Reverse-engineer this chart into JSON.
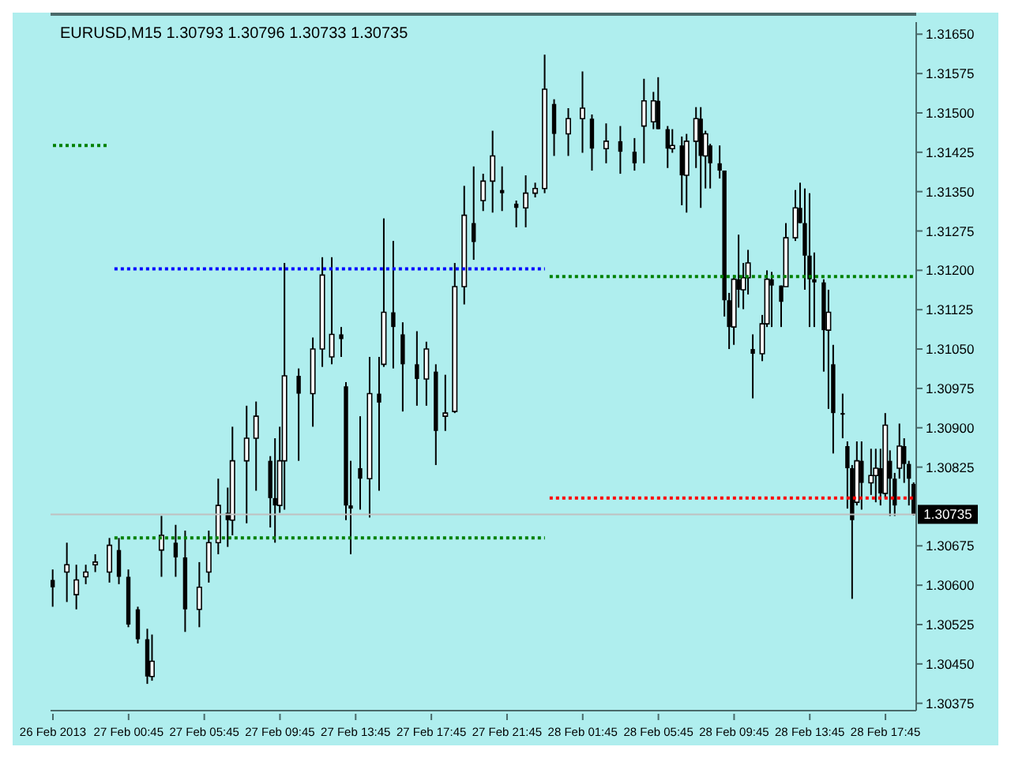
{
  "chart_data": {
    "type": "candlestick",
    "title": "EURUSD,M15  1.30793 1.30796 1.30733 1.30735",
    "color": "#000000",
    "categories": [
      "26 Feb 2013",
      null,
      null,
      null,
      null,
      null,
      null,
      null,
      null,
      null,
      null,
      null,
      null,
      null,
      null,
      null,
      "27 Feb 00:45",
      null,
      null,
      null,
      null,
      null,
      null,
      null,
      null,
      null,
      null,
      null,
      null,
      null,
      null,
      null,
      "27 Feb 05:45",
      null,
      null,
      null,
      null,
      null,
      null,
      null,
      null,
      null,
      null,
      null,
      null,
      null,
      null,
      null,
      "27 Feb 09:45",
      null,
      null,
      null,
      null,
      null,
      null,
      null,
      null,
      null,
      null,
      null,
      null,
      null,
      null,
      null,
      "27 Feb 13:45",
      null,
      null,
      null,
      null,
      null,
      null,
      null,
      null,
      null,
      null,
      null,
      null,
      null,
      null,
      null,
      "27 Feb 17:45",
      null,
      null,
      null,
      null,
      null,
      null,
      null,
      null,
      null,
      null,
      null,
      null,
      null,
      null,
      null,
      "27 Feb 21:45",
      null,
      null,
      null,
      null,
      null,
      null,
      null,
      null,
      null,
      null,
      null,
      null,
      null,
      null,
      null,
      "28 Feb 01:45",
      null,
      null,
      null,
      null,
      null,
      null,
      null,
      null,
      null,
      null,
      null,
      null,
      null,
      null,
      null,
      "28 Feb 05:45",
      null,
      null,
      null,
      null,
      null,
      null,
      null,
      null,
      null,
      null,
      null,
      null,
      null,
      null,
      null,
      "28 Feb 09:45",
      null,
      null,
      null,
      null,
      null,
      null,
      null,
      null,
      null,
      null,
      null,
      null,
      null,
      null,
      null,
      "28 Feb 13:45",
      null,
      null,
      null,
      null,
      null,
      null,
      null,
      null,
      null,
      null,
      null,
      null,
      null,
      null,
      null,
      "28 Feb 17:45",
      null,
      null,
      null,
      null,
      null,
      null
    ],
    "ohlc": [
      [
        1.3061,
        1.3063,
        1.30559,
        1.30596
      ],
      null,
      null,
      [
        1.30625,
        1.30681,
        1.30568,
        1.30639
      ],
      null,
      [
        1.30582,
        1.30639,
        1.30554,
        1.3061
      ],
      null,
      [
        1.30616,
        1.30639,
        1.30602,
        1.30625
      ],
      null,
      [
        1.30639,
        1.30659,
        1.30625,
        1.30644
      ],
      null,
      null,
      [
        1.30625,
        1.3069,
        1.30605,
        1.30676
      ],
      null,
      [
        1.30667,
        1.3069,
        1.30602,
        1.30616
      ],
      null,
      [
        1.30616,
        1.3063,
        1.3052,
        1.30525
      ],
      null,
      [
        1.30554,
        1.30559,
        1.30489,
        1.30497
      ],
      null,
      [
        1.30497,
        1.30517,
        1.30412,
        1.30426
      ],
      [
        1.30426,
        1.30506,
        1.30418,
        1.30455
      ],
      null,
      [
        1.30667,
        1.30732,
        1.30616,
        1.30695
      ],
      null,
      null,
      [
        1.30681,
        1.30715,
        1.30616,
        1.30653
      ],
      null,
      [
        1.30653,
        1.30704,
        1.30511,
        1.30554
      ],
      null,
      null,
      [
        1.30554,
        1.30644,
        1.3052,
        1.30596
      ],
      null,
      [
        1.30625,
        1.30704,
        1.30605,
        1.30681
      ],
      null,
      [
        1.30681,
        1.30803,
        1.30659,
        1.30752
      ],
      null,
      [
        1.30738,
        1.30786,
        1.30673,
        1.30724
      ],
      [
        1.30724,
        1.30902,
        1.30695,
        1.30837
      ],
      null,
      null,
      [
        1.30837,
        1.30942,
        1.30718,
        1.3088
      ],
      null,
      [
        1.3088,
        1.3095,
        1.3078,
        1.30922
      ],
      null,
      null,
      [
        1.30837,
        1.30846,
        1.3071,
        1.30766
      ],
      [
        1.30766,
        1.3088,
        1.30681,
        1.30752
      ],
      [
        1.30752,
        1.30902,
        1.30738,
        1.30837
      ],
      [
        1.30837,
        1.31214,
        1.30744,
        1.30999
      ],
      null,
      null,
      [
        1.30999,
        1.31013,
        1.30837,
        1.30965
      ],
      null,
      null,
      [
        1.30965,
        1.31072,
        1.30902,
        1.3105
      ],
      null,
      [
        1.3105,
        1.31225,
        1.31016,
        1.31191
      ],
      null,
      [
        1.31035,
        1.31225,
        1.31021,
        1.31078
      ],
      null,
      [
        1.31078,
        1.31092,
        1.31035,
        1.31069
      ],
      [
        1.30979,
        1.30987,
        1.30724,
        1.30752
      ],
      [
        1.30752,
        1.30837,
        1.30659,
        1.30746
      ],
      null,
      [
        1.30823,
        1.30922,
        1.30744,
        1.30803
      ],
      null,
      [
        1.30803,
        1.31035,
        1.30729,
        1.30965
      ],
      null,
      [
        1.30965,
        1.31035,
        1.3078,
        1.30948
      ],
      [
        1.31021,
        1.31299,
        1.31016,
        1.3112
      ],
      null,
      [
        1.3112,
        1.31256,
        1.31013,
        1.31092
      ],
      null,
      [
        1.31078,
        1.31101,
        1.30931,
        1.31021
      ],
      null,
      null,
      [
        1.31021,
        1.31084,
        1.30942,
        1.30993
      ],
      null,
      [
        1.30993,
        1.31064,
        1.30942,
        1.3105
      ],
      null,
      [
        1.31007,
        1.31021,
        1.30829,
        1.30894
      ],
      null,
      [
        1.30922,
        1.31001,
        1.30894,
        1.30928
      ],
      null,
      [
        1.30931,
        1.31214,
        1.30928,
        1.31169
      ],
      null,
      [
        1.31169,
        1.31361,
        1.31135,
        1.31305
      ],
      null,
      [
        1.3129,
        1.31398,
        1.3122,
        1.31254
      ],
      null,
      [
        1.31333,
        1.31384,
        1.31313,
        1.3137
      ],
      null,
      [
        1.3137,
        1.31466,
        1.3131,
        1.31418
      ],
      null,
      [
        1.31353,
        1.31398,
        1.31313,
        1.31347
      ],
      null,
      null,
      [
        1.31327,
        1.31333,
        1.31282,
        1.31319
      ],
      null,
      [
        1.31319,
        1.31381,
        1.31282,
        1.31347
      ],
      null,
      [
        1.31347,
        1.31367,
        1.31339,
        1.31356
      ],
      null,
      [
        1.31356,
        1.31611,
        1.31347,
        1.31545
      ],
      null,
      [
        1.31517,
        1.31526,
        1.31418,
        1.3146
      ],
      null,
      null,
      [
        1.3146,
        1.31509,
        1.31418,
        1.31489
      ],
      null,
      null,
      [
        1.31489,
        1.31579,
        1.31424,
        1.31509
      ],
      null,
      [
        1.31489,
        1.31497,
        1.3139,
        1.31432
      ],
      null,
      null,
      [
        1.31432,
        1.3148,
        1.31404,
        1.31446
      ],
      null,
      null,
      [
        1.31446,
        1.31475,
        1.31384,
        1.31426
      ],
      null,
      null,
      [
        1.31426,
        1.31452,
        1.3139,
        1.31404
      ],
      null,
      [
        1.31475,
        1.31565,
        1.31404,
        1.31523
      ],
      null,
      [
        1.31483,
        1.3154,
        1.31469,
        1.31523
      ],
      [
        1.31523,
        1.31568,
        1.31469,
        1.31469
      ],
      null,
      [
        1.31469,
        1.31475,
        1.31395,
        1.31432
      ],
      [
        1.31432,
        1.31469,
        1.31424,
        1.31438
      ],
      null,
      [
        1.31438,
        1.31455,
        1.31324,
        1.31381
      ],
      [
        1.31381,
        1.3146,
        1.3131,
        1.31446
      ],
      null,
      [
        1.31446,
        1.31511,
        1.31395,
        1.31489
      ],
      [
        1.31489,
        1.31511,
        1.31319,
        1.31418
      ],
      [
        1.31418,
        1.31466,
        1.31356,
        1.3146
      ],
      [
        1.31438,
        1.31441,
        1.31356,
        1.31404
      ],
      null,
      [
        1.31404,
        1.31438,
        1.31375,
        1.3139
      ],
      [
        1.3139,
        1.3139,
        1.31112,
        1.31143
      ],
      [
        1.31143,
        1.31157,
        1.3105,
        1.31092
      ],
      [
        1.31092,
        1.31191,
        1.31058,
        1.31183
      ],
      [
        1.31183,
        1.31268,
        1.31129,
        1.31163
      ],
      [
        1.31163,
        1.31214,
        1.31126,
        1.31186
      ],
      [
        1.31186,
        1.31239,
        1.31154,
        1.31214
      ],
      [
        1.3105,
        1.31078,
        1.30956,
        1.31041
      ],
      null,
      [
        1.31041,
        1.31115,
        1.31027,
        1.31098
      ],
      [
        1.31098,
        1.312,
        1.31092,
        1.31183
      ],
      [
        1.31183,
        1.31197,
        1.31092,
        1.31171
      ],
      null,
      [
        1.31171,
        1.31171,
        1.31092,
        1.3114
      ],
      [
        1.31169,
        1.3129,
        1.31169,
        1.31262
      ],
      null,
      [
        1.31262,
        1.31353,
        1.31256,
        1.31319
      ],
      [
        1.31319,
        1.31367,
        1.3129,
        1.3129
      ],
      [
        1.3129,
        1.31356,
        1.31163,
        1.31228
      ],
      [
        1.31228,
        1.31347,
        1.31092,
        1.31183
      ],
      [
        1.31183,
        1.31234,
        1.31092,
        1.31177
      ],
      null,
      [
        1.31177,
        1.31183,
        1.31007,
        1.31086
      ],
      [
        1.31086,
        1.31163,
        1.30936,
        1.3112
      ],
      [
        1.31021,
        1.31058,
        1.30851,
        1.30928
      ],
      null,
      [
        1.30928,
        1.30965,
        1.3088,
        1.30928
      ],
      [
        1.30865,
        1.30874,
        1.30746,
        1.30823
      ],
      [
        1.30823,
        1.30829,
        1.30574,
        1.30724
      ],
      [
        1.30758,
        1.30874,
        1.30752,
        1.30837
      ],
      [
        1.30837,
        1.30874,
        1.30744,
        1.30795
      ],
      null,
      [
        1.30795,
        1.3086,
        1.30772,
        1.30809
      ],
      [
        1.30809,
        1.3086,
        1.30758,
        1.30823
      ],
      [
        1.30823,
        1.3086,
        1.30752,
        1.30775
      ],
      [
        1.30775,
        1.30928,
        1.30766,
        1.30905
      ],
      [
        1.30837,
        1.30857,
        1.30732,
        1.30803
      ],
      [
        1.30803,
        1.30814,
        1.30732,
        1.30752
      ],
      [
        1.30823,
        1.30908,
        1.30803,
        1.30865
      ],
      [
        1.30865,
        1.3088,
        1.30795,
        1.30831
      ],
      [
        1.30831,
        1.30837,
        1.30752,
        1.30803
      ],
      [
        1.30793,
        1.30796,
        1.30733,
        1.30735
      ]
    ],
    "series": [
      {
        "type": "line",
        "color": "#008000",
        "line_style": "dotted",
        "values": [
          1.31438,
          1.31438,
          1.31438,
          1.31438,
          1.31438,
          1.31438,
          1.31438,
          1.31438,
          1.31438,
          1.31438,
          1.31438,
          1.31438,
          1.31438,
          null,
          null,
          null,
          null,
          null,
          null,
          null,
          null,
          null,
          null,
          null,
          null,
          null,
          null,
          null,
          null,
          null,
          null,
          null,
          null,
          null,
          null,
          null,
          null,
          null,
          null,
          null,
          null,
          null,
          null,
          null,
          null,
          null,
          null,
          null,
          null,
          null,
          null,
          null,
          null,
          null,
          null,
          null,
          null,
          null,
          null,
          null,
          null,
          null,
          null,
          null,
          null,
          null,
          null,
          null,
          null,
          null,
          null,
          null,
          null,
          null,
          null,
          null,
          null,
          null,
          null,
          null,
          null,
          null,
          null,
          null,
          null,
          null,
          null,
          null,
          null,
          null,
          null,
          null,
          null,
          null,
          null,
          null,
          null,
          null,
          null,
          null,
          null,
          null,
          null,
          null,
          null,
          null,
          null,
          null,
          null,
          null,
          null,
          null,
          null,
          null,
          null,
          null,
          null,
          null,
          null,
          null,
          null,
          null,
          null,
          null,
          null,
          null,
          null,
          null,
          null,
          null,
          null,
          null,
          null,
          null,
          null,
          null,
          null,
          null,
          null,
          null,
          null,
          null,
          null,
          null,
          null,
          null,
          null,
          null,
          null,
          null,
          null,
          null,
          null,
          null,
          null,
          null,
          null,
          null,
          null,
          null,
          null,
          null,
          null,
          null,
          null,
          null,
          null,
          null,
          null,
          null,
          null,
          null,
          null,
          null,
          null,
          null,
          null,
          null,
          null,
          null,
          null,
          null,
          null
        ]
      },
      {
        "type": "line",
        "color": "#0000ff",
        "line_style": "dotted",
        "values": [
          null,
          null,
          null,
          null,
          null,
          null,
          null,
          null,
          null,
          null,
          null,
          null,
          null,
          1.31203,
          1.31203,
          1.31203,
          1.31203,
          1.31203,
          1.31203,
          1.31203,
          1.31203,
          1.31203,
          1.31203,
          1.31203,
          1.31203,
          1.31203,
          1.31203,
          1.31203,
          1.31203,
          1.31203,
          1.31203,
          1.31203,
          1.31203,
          1.31203,
          1.31203,
          1.31203,
          1.31203,
          1.31203,
          1.31203,
          1.31203,
          1.31203,
          1.31203,
          1.31203,
          1.31203,
          1.31203,
          1.31203,
          1.31203,
          1.31203,
          1.31203,
          1.31203,
          1.31203,
          1.31203,
          1.31203,
          1.31203,
          1.31203,
          1.31203,
          1.31203,
          1.31203,
          1.31203,
          1.31203,
          1.31203,
          1.31203,
          1.31203,
          1.31203,
          1.31203,
          1.31203,
          1.31203,
          1.31203,
          1.31203,
          1.31203,
          1.31203,
          1.31203,
          1.31203,
          1.31203,
          1.31203,
          1.31203,
          1.31203,
          1.31203,
          1.31203,
          1.31203,
          1.31203,
          1.31203,
          1.31203,
          1.31203,
          1.31203,
          1.31203,
          1.31203,
          1.31203,
          1.31203,
          1.31203,
          1.31203,
          1.31203,
          1.31203,
          1.31203,
          1.31203,
          1.31203,
          1.31203,
          1.31203,
          1.31203,
          1.31203,
          1.31203,
          1.31203,
          1.31203,
          1.31203,
          1.31203,
          null,
          null,
          null,
          null,
          null,
          null,
          null,
          null,
          null,
          null,
          null,
          null,
          null,
          null,
          null,
          null,
          null,
          null,
          null,
          null,
          null,
          null,
          null,
          null,
          null,
          null,
          null,
          null,
          null,
          null,
          null,
          null,
          null,
          null,
          null,
          null,
          null,
          null,
          null,
          null,
          null,
          null,
          null,
          null,
          null,
          null,
          null,
          null,
          null,
          null,
          null,
          null,
          null,
          null,
          null,
          null,
          null,
          null,
          null,
          null,
          null,
          null,
          null,
          null,
          null,
          null,
          null,
          null,
          null,
          null,
          null,
          null,
          null,
          null,
          null,
          null,
          null,
          null
        ]
      },
      {
        "type": "line",
        "color": "#008000",
        "line_style": "dotted",
        "values": [
          null,
          null,
          null,
          null,
          null,
          null,
          null,
          null,
          null,
          null,
          null,
          null,
          null,
          1.3069,
          1.3069,
          1.3069,
          1.3069,
          1.3069,
          1.3069,
          1.3069,
          1.3069,
          1.3069,
          1.3069,
          1.3069,
          1.3069,
          1.3069,
          1.3069,
          1.3069,
          1.3069,
          1.3069,
          1.3069,
          1.3069,
          1.3069,
          1.3069,
          1.3069,
          1.3069,
          1.3069,
          1.3069,
          1.3069,
          1.3069,
          1.3069,
          1.3069,
          1.3069,
          1.3069,
          1.3069,
          1.3069,
          1.3069,
          1.3069,
          1.3069,
          1.3069,
          1.3069,
          1.3069,
          1.3069,
          1.3069,
          1.3069,
          1.3069,
          1.3069,
          1.3069,
          1.3069,
          1.3069,
          1.3069,
          1.3069,
          1.3069,
          1.3069,
          1.3069,
          1.3069,
          1.3069,
          1.3069,
          1.3069,
          1.3069,
          1.3069,
          1.3069,
          1.3069,
          1.3069,
          1.3069,
          1.3069,
          1.3069,
          1.3069,
          1.3069,
          1.3069,
          1.3069,
          1.3069,
          1.3069,
          1.3069,
          1.3069,
          1.3069,
          1.3069,
          1.3069,
          1.3069,
          1.3069,
          1.3069,
          1.3069,
          1.3069,
          1.3069,
          1.3069,
          1.3069,
          1.3069,
          1.3069,
          1.3069,
          1.3069,
          1.3069,
          1.3069,
          1.3069,
          1.3069,
          1.3069,
          null,
          null,
          null,
          null,
          null,
          null,
          null,
          null,
          null,
          null,
          null,
          null,
          null,
          null,
          null,
          null,
          null,
          null,
          null,
          null,
          null,
          null,
          null,
          null,
          null,
          null,
          null,
          null,
          null,
          null,
          null,
          null,
          null,
          null,
          null,
          null,
          null,
          null,
          null,
          null,
          null,
          null,
          null,
          null,
          null,
          null,
          null,
          null,
          null,
          null,
          null,
          null,
          null,
          null,
          null,
          null,
          null,
          null,
          null,
          null,
          null,
          null,
          null,
          null,
          null,
          null,
          null,
          null,
          null,
          null,
          null,
          null,
          null,
          null,
          null,
          null,
          null,
          null
        ]
      },
      {
        "type": "line",
        "color": "#008000",
        "line_style": "dotted",
        "values": [
          null,
          null,
          null,
          null,
          null,
          null,
          null,
          null,
          null,
          null,
          null,
          null,
          null,
          null,
          null,
          null,
          null,
          null,
          null,
          null,
          null,
          null,
          null,
          null,
          null,
          null,
          null,
          null,
          null,
          null,
          null,
          null,
          null,
          null,
          null,
          null,
          null,
          null,
          null,
          null,
          null,
          null,
          null,
          null,
          null,
          null,
          null,
          null,
          null,
          null,
          null,
          null,
          null,
          null,
          null,
          null,
          null,
          null,
          null,
          null,
          null,
          null,
          null,
          null,
          null,
          null,
          null,
          null,
          null,
          null,
          null,
          null,
          null,
          null,
          null,
          null,
          null,
          null,
          null,
          null,
          null,
          null,
          null,
          null,
          null,
          null,
          null,
          null,
          null,
          null,
          null,
          null,
          null,
          null,
          null,
          null,
          null,
          null,
          null,
          null,
          null,
          null,
          null,
          null,
          null,
          1.31188,
          1.31188,
          1.31188,
          1.31188,
          1.31188,
          1.31188,
          1.31188,
          1.31188,
          1.31188,
          1.31188,
          1.31188,
          1.31188,
          1.31188,
          1.31188,
          1.31188,
          1.31188,
          1.31188,
          1.31188,
          1.31188,
          1.31188,
          1.31188,
          1.31188,
          1.31188,
          1.31188,
          1.31188,
          1.31188,
          1.31188,
          1.31188,
          1.31188,
          1.31188,
          1.31188,
          1.31188,
          1.31188,
          1.31188,
          1.31188,
          1.31188,
          1.31188,
          1.31188,
          1.31188,
          1.31188,
          1.31188,
          1.31188,
          1.31188,
          1.31188,
          1.31188,
          1.31188,
          1.31188,
          1.31188,
          1.31188,
          1.31188,
          1.31188,
          1.31188,
          1.31188,
          1.31188,
          1.31188,
          1.31188,
          1.31188,
          1.31188,
          1.31188,
          1.31188,
          1.31188,
          1.31188,
          1.31188,
          1.31188,
          1.31188,
          1.31188,
          1.31188,
          1.31188,
          1.31188,
          1.31188,
          1.31188,
          1.31188,
          1.31188,
          1.31188,
          1.31188,
          1.31188,
          1.31188,
          1.31188
        ]
      },
      {
        "type": "line",
        "color": "#ff0000",
        "line_style": "dotted",
        "values": [
          null,
          null,
          null,
          null,
          null,
          null,
          null,
          null,
          null,
          null,
          null,
          null,
          null,
          null,
          null,
          null,
          null,
          null,
          null,
          null,
          null,
          null,
          null,
          null,
          null,
          null,
          null,
          null,
          null,
          null,
          null,
          null,
          null,
          null,
          null,
          null,
          null,
          null,
          null,
          null,
          null,
          null,
          null,
          null,
          null,
          null,
          null,
          null,
          null,
          null,
          null,
          null,
          null,
          null,
          null,
          null,
          null,
          null,
          null,
          null,
          null,
          null,
          null,
          null,
          null,
          null,
          null,
          null,
          null,
          null,
          null,
          null,
          null,
          null,
          null,
          null,
          null,
          null,
          null,
          null,
          null,
          null,
          null,
          null,
          null,
          null,
          null,
          null,
          null,
          null,
          null,
          null,
          null,
          null,
          null,
          null,
          null,
          null,
          null,
          null,
          null,
          null,
          null,
          null,
          null,
          1.30766,
          1.30766,
          1.30766,
          1.30766,
          1.30766,
          1.30766,
          1.30766,
          1.30766,
          1.30766,
          1.30766,
          1.30766,
          1.30766,
          1.30766,
          1.30766,
          1.30766,
          1.30766,
          1.30766,
          1.30766,
          1.30766,
          1.30766,
          1.30766,
          1.30766,
          1.30766,
          1.30766,
          1.30766,
          1.30766,
          1.30766,
          1.30766,
          1.30766,
          1.30766,
          1.30766,
          1.30766,
          1.30766,
          1.30766,
          1.30766,
          1.30766,
          1.30766,
          1.30766,
          1.30766,
          1.30766,
          1.30766,
          1.30766,
          1.30766,
          1.30766,
          1.30766,
          1.30766,
          1.30766,
          1.30766,
          1.30766,
          1.30766,
          1.30766,
          1.30766,
          1.30766,
          1.30766,
          1.30766,
          1.30766,
          1.30766,
          1.30766,
          1.30766,
          1.30766,
          1.30766,
          1.30766,
          1.30766,
          1.30766,
          1.30766,
          1.30766,
          1.30766,
          1.30766,
          1.30766,
          1.30766,
          1.30766,
          1.30766,
          1.30766,
          1.30766,
          1.30766,
          1.30766,
          1.30766,
          1.30766
        ]
      }
    ],
    "ylim": [
      1.30361,
      1.31673
    ],
    "yticks": [
      {
        "value": 1.30375,
        "label": "1.30375"
      },
      {
        "value": 1.3045,
        "label": "1.30450"
      },
      {
        "value": 1.30525,
        "label": "1.30525"
      },
      {
        "value": 1.306,
        "label": "1.30600"
      },
      {
        "value": 1.30675,
        "label": "1.30675"
      },
      {
        "value": 1.30825,
        "label": "1.30825"
      },
      {
        "value": 1.309,
        "label": "1.30900"
      },
      {
        "value": 1.30975,
        "label": "1.30975"
      },
      {
        "value": 1.3105,
        "label": "1.31050"
      },
      {
        "value": 1.31125,
        "label": "1.31125"
      },
      {
        "value": 1.312,
        "label": "1.31200"
      },
      {
        "value": 1.31275,
        "label": "1.31275"
      },
      {
        "value": 1.3135,
        "label": "1.31350"
      },
      {
        "value": 1.31425,
        "label": "1.31425"
      },
      {
        "value": 1.315,
        "label": "1.31500"
      },
      {
        "value": 1.31575,
        "label": "1.31575"
      },
      {
        "value": 1.3165,
        "label": "1.31650"
      }
    ],
    "ref_lines": [
      {
        "axis": "y",
        "value": 1.30735,
        "label": "1.30735",
        "color": "#c0c0c0"
      }
    ]
  }
}
